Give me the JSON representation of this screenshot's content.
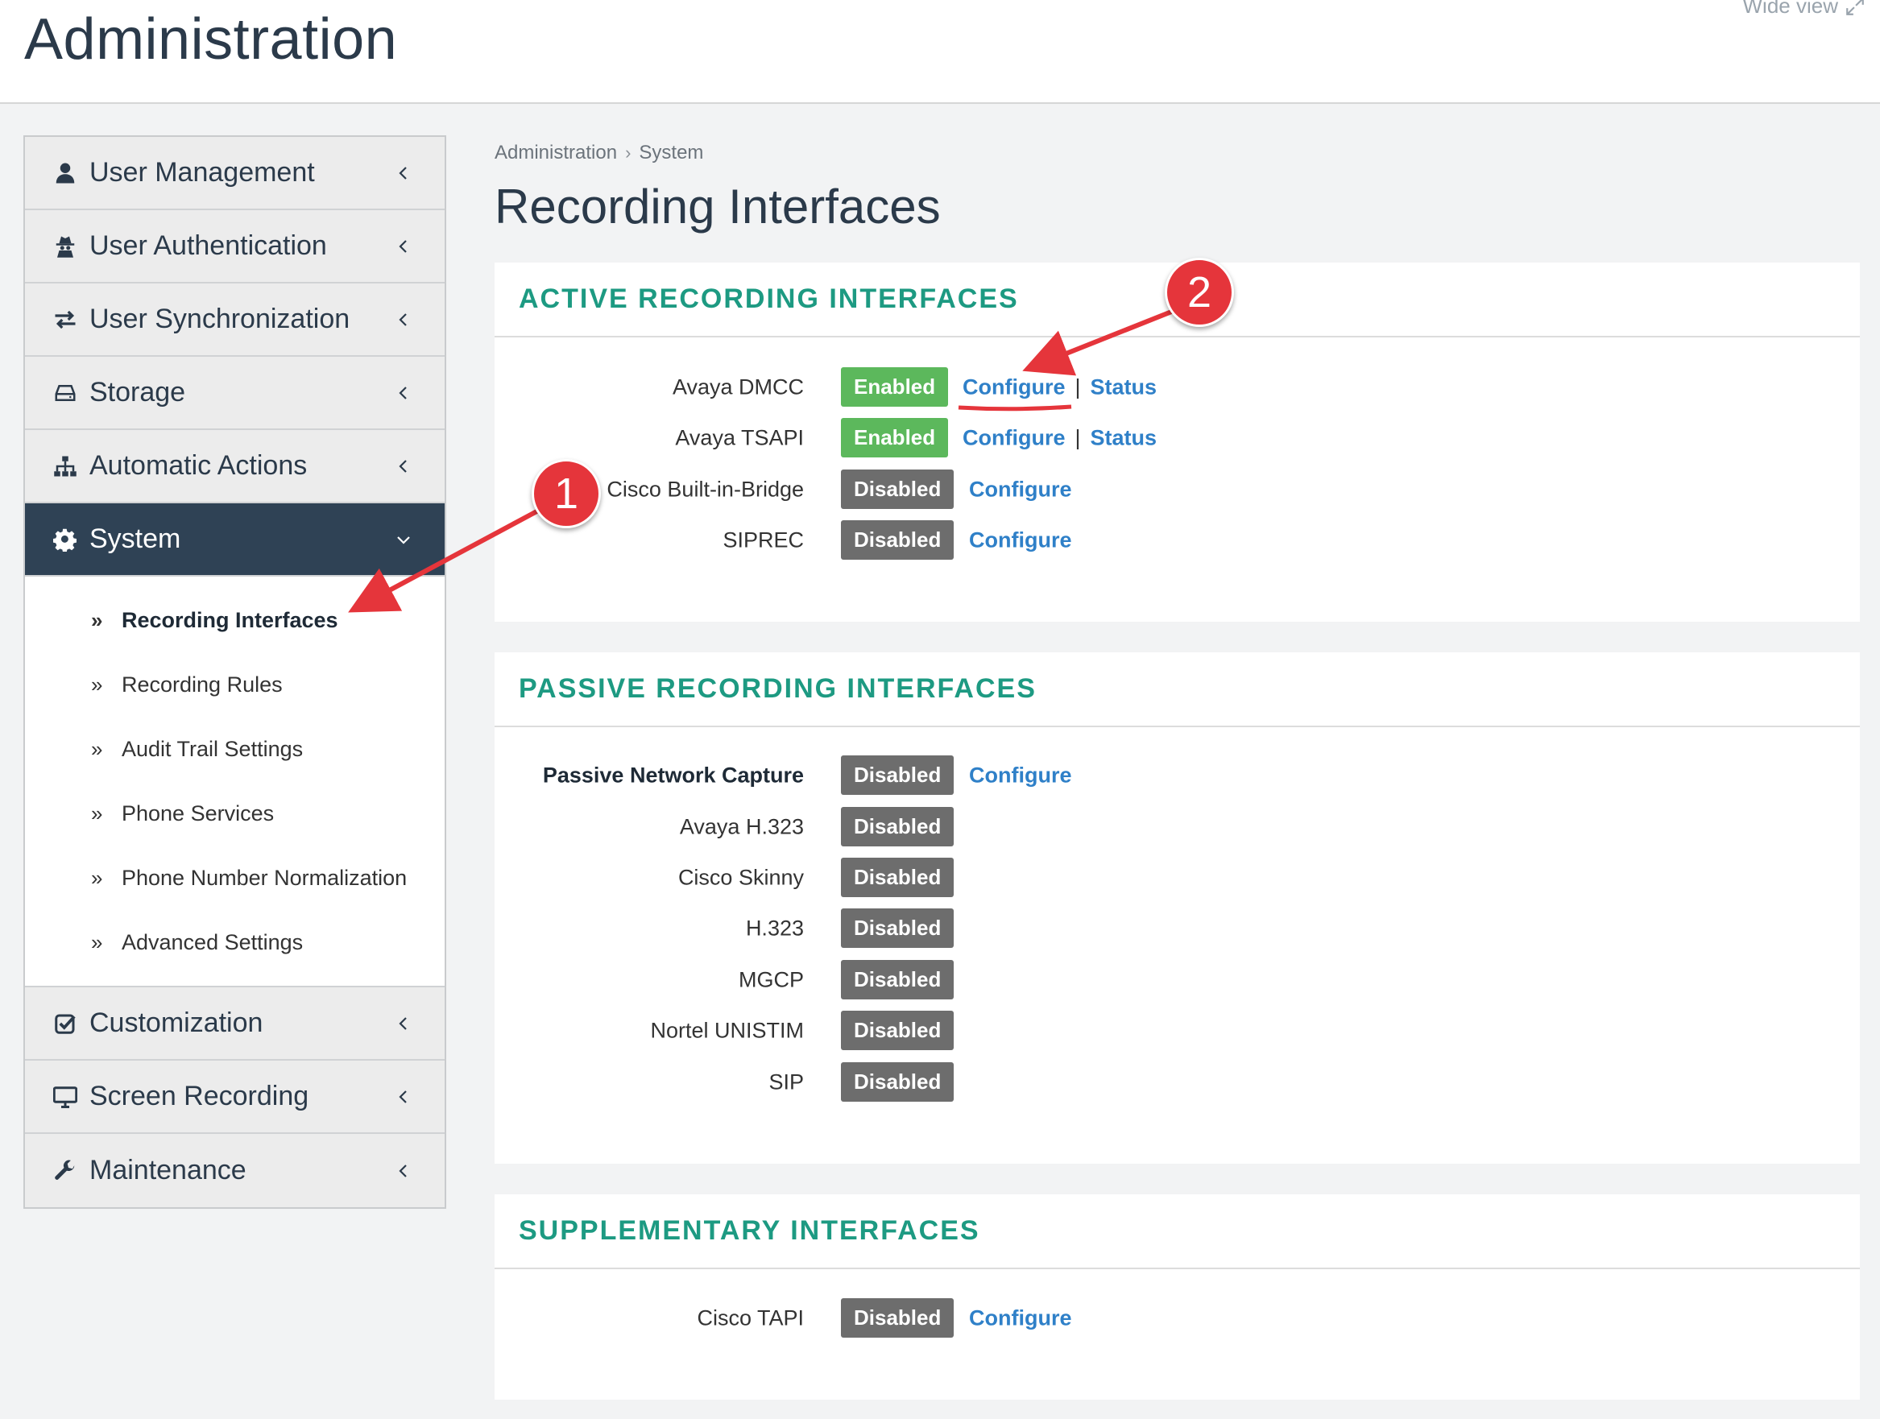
{
  "header": {
    "title": "Administration",
    "wide_view_label": "Wide view"
  },
  "sidebar": {
    "items": [
      {
        "label": "User Management",
        "icon": "user-icon"
      },
      {
        "label": "User Authentication",
        "icon": "user-secret-icon"
      },
      {
        "label": "User Synchronization",
        "icon": "exchange-icon"
      },
      {
        "label": "Storage",
        "icon": "hdd-icon"
      },
      {
        "label": "Automatic Actions",
        "icon": "sitemap-icon"
      },
      {
        "label": "System",
        "icon": "gear-icon",
        "expanded": true
      },
      {
        "label": "Customization",
        "icon": "check-square-icon"
      },
      {
        "label": "Screen Recording",
        "icon": "desktop-icon"
      },
      {
        "label": "Maintenance",
        "icon": "wrench-icon"
      }
    ],
    "system_submenu": [
      {
        "label": "Recording Interfaces",
        "current": true
      },
      {
        "label": "Recording Rules"
      },
      {
        "label": "Audit Trail Settings"
      },
      {
        "label": "Phone Services"
      },
      {
        "label": "Phone Number Normalization"
      },
      {
        "label": "Advanced Settings"
      }
    ]
  },
  "breadcrumb": [
    "Administration",
    "System"
  ],
  "page_title": "Recording Interfaces",
  "active_panel": {
    "title": "ACTIVE  RECORDING  INTERFACES",
    "rows": [
      {
        "name": "Avaya DMCC",
        "status": "Enabled",
        "configure": "Configure",
        "status_link": "Status"
      },
      {
        "name": "Avaya TSAPI",
        "status": "Enabled",
        "configure": "Configure",
        "status_link": "Status"
      },
      {
        "name": "Cisco Built-in-Bridge",
        "status": "Disabled",
        "configure": "Configure"
      },
      {
        "name": "SIPREC",
        "status": "Disabled",
        "configure": "Configure"
      }
    ]
  },
  "passive_panel": {
    "title": "PASSIVE  RECORDING  INTERFACES",
    "rows": [
      {
        "name": "Passive Network Capture",
        "status": "Disabled",
        "configure": "Configure"
      },
      {
        "name": "Avaya H.323",
        "status": "Disabled"
      },
      {
        "name": "Cisco Skinny",
        "status": "Disabled"
      },
      {
        "name": "H.323",
        "status": "Disabled"
      },
      {
        "name": "MGCP",
        "status": "Disabled"
      },
      {
        "name": "Nortel UNISTIM",
        "status": "Disabled"
      },
      {
        "name": "SIP",
        "status": "Disabled"
      }
    ]
  },
  "supplementary_panel": {
    "title": "SUPPLEMENTARY  INTERFACES",
    "rows": [
      {
        "name": "Cisco TAPI",
        "status": "Disabled",
        "configure": "Configure"
      }
    ]
  },
  "annotations": {
    "callout_1": "1",
    "callout_2": "2",
    "color": "#e5353b"
  },
  "colors": {
    "accent_teal": "#1d9a82",
    "sidebar_active": "#2f4255",
    "enabled": "#5cb85c",
    "disabled": "#6d6d6d",
    "link": "#2f80c8"
  }
}
